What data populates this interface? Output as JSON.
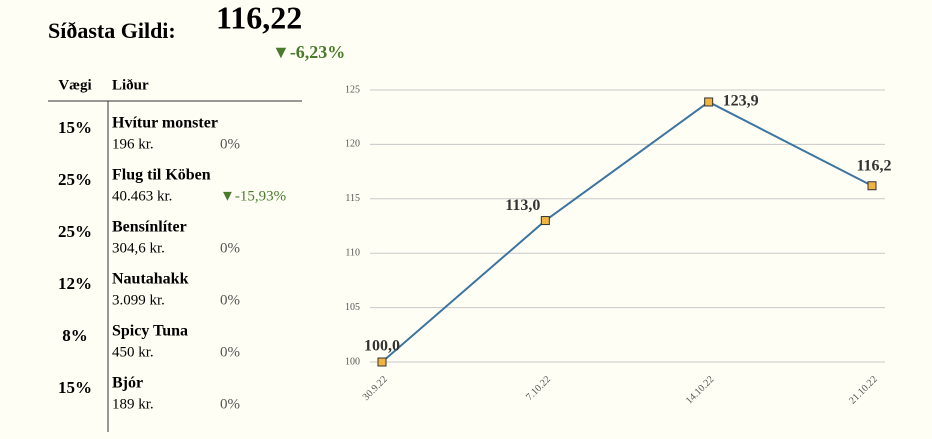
{
  "header": {
    "title": "Síðasta Gildi:",
    "value": "116,22",
    "change": "▼-6,23%",
    "change_color": "#4a7a2c"
  },
  "table": {
    "columns": [
      "Vægi",
      "Liður"
    ],
    "rows": [
      {
        "weight": "15%",
        "name": "Hvítur monster",
        "price": "196 kr.",
        "change": "0%",
        "color": "#555555"
      },
      {
        "weight": "25%",
        "name": "Flug til Köben",
        "price": "40.463 kr.",
        "change": "▼-15,93%",
        "color": "#4a7a2c"
      },
      {
        "weight": "25%",
        "name": "Bensínlíter",
        "price": "304,6 kr.",
        "change": "0%",
        "color": "#555555"
      },
      {
        "weight": "12%",
        "name": "Nautahakk",
        "price": "3.099 kr.",
        "change": "0%",
        "color": "#555555"
      },
      {
        "weight": "8%",
        "name": "Spicy Tuna",
        "price": "450 kr.",
        "change": "0%",
        "color": "#555555"
      },
      {
        "weight": "15%",
        "name": "Bjór",
        "price": "189 kr.",
        "change": "0%",
        "color": "#555555"
      }
    ]
  },
  "chart_data": {
    "type": "line",
    "categories": [
      "30.9.22",
      "7.10.22",
      "14.10.22",
      "21.10.22"
    ],
    "values": [
      100.0,
      113.0,
      123.9,
      116.2
    ],
    "value_labels": [
      "100,0",
      "113,0",
      "123,9",
      "116,2"
    ],
    "color": "#3e74a0",
    "marker_color": "#f0b440",
    "ylim": [
      100,
      125
    ],
    "yticks": [
      100,
      105,
      110,
      115,
      120,
      125
    ],
    "grid": true
  }
}
